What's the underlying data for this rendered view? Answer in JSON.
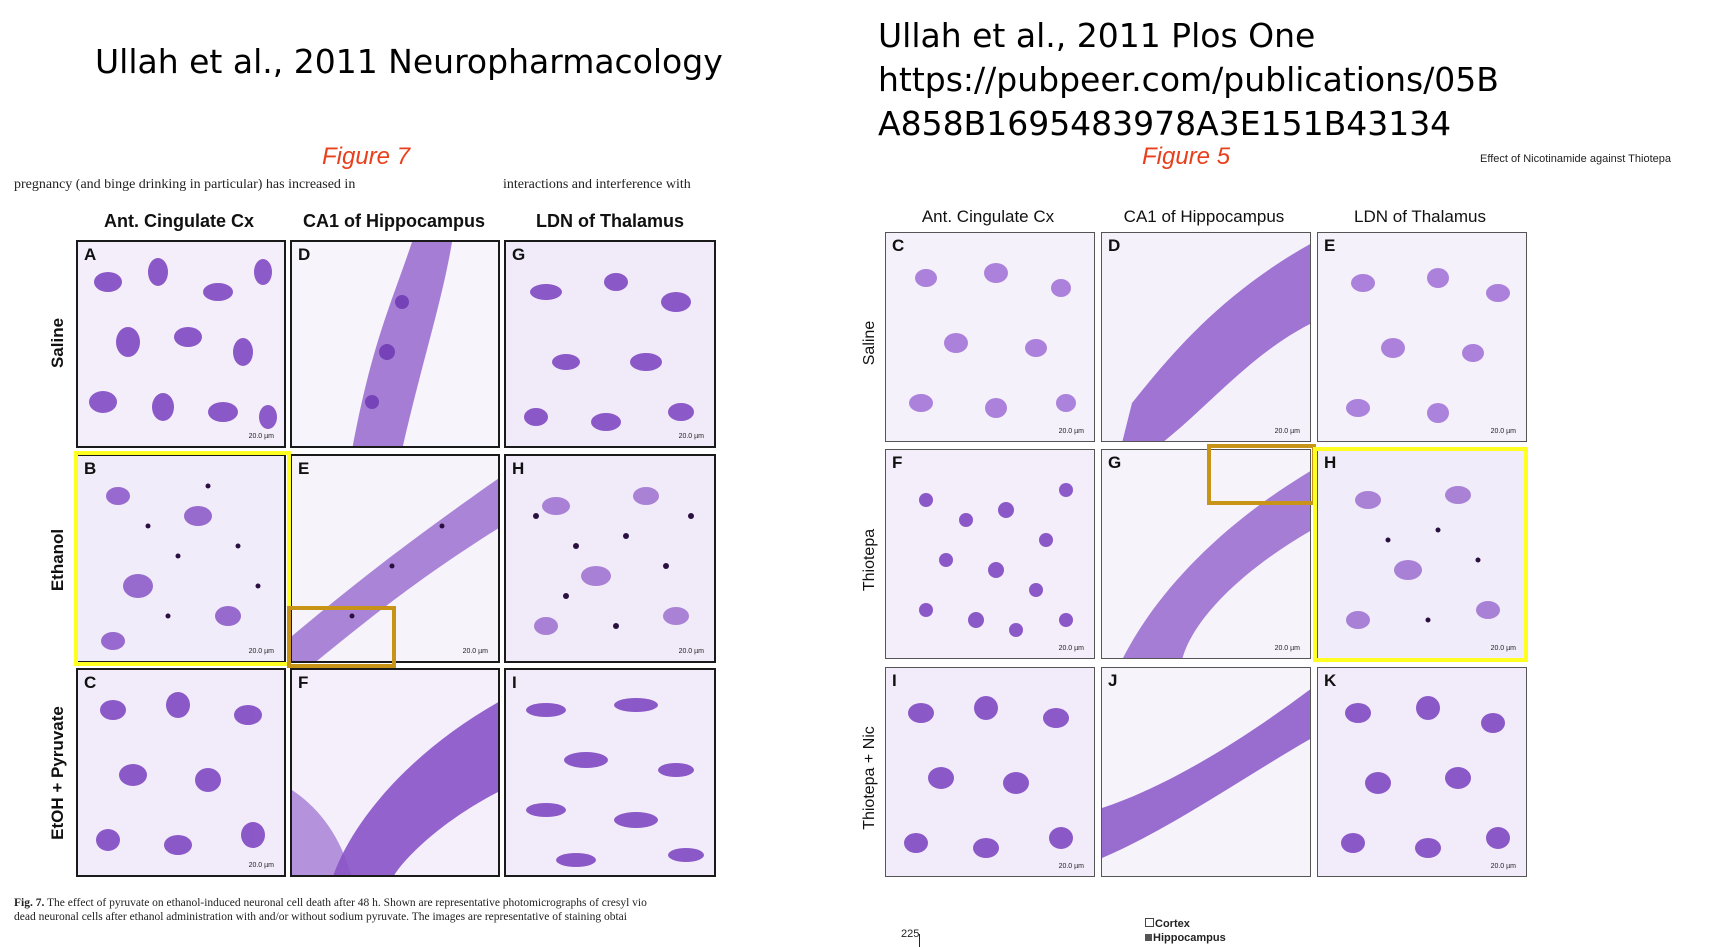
{
  "titles": {
    "left": "Ullah et al., 2011 Neuropharmacology",
    "right_line1": "Ullah et al., 2011 Plos One",
    "right_line2": "https://pubpeer.com/publications/05B",
    "right_line3": "A858B1695483978A3E151B43134"
  },
  "figures": {
    "left_label": "Figure 7",
    "right_label": "Figure 5",
    "right_running_head": "Effect of Nicotinamide against Thiotepa"
  },
  "left_figure": {
    "top_text_a": "pregnancy (and binge drinking in particular) has increased in",
    "top_text_b": "interactions and interference with",
    "columns": [
      "Ant. Cingulate Cx",
      "CA1 of Hippocampus",
      "LDN of Thalamus"
    ],
    "rows": [
      "Saline",
      "Ethanol",
      "EtOH + Pyruvate"
    ],
    "panels": [
      "A",
      "D",
      "G",
      "B",
      "E",
      "H",
      "C",
      "F",
      "I"
    ],
    "scale_bar": "20.0 µm",
    "caption_bold": "Fig. 7.",
    "caption_line1": "The effect of pyruvate on ethanol-induced neuronal cell death after 48 h. Shown are representative photomicrographs of cresyl vio",
    "caption_line2": "dead neuronal cells after ethanol administration with and/or without sodium pyruvate. The images are representative of staining obtai"
  },
  "right_figure": {
    "columns": [
      "Ant. Cingulate Cx",
      "CA1 of Hippocampus",
      "LDN of Thalamus"
    ],
    "rows": [
      "Saline",
      "Thiotepa",
      "Thiotepa + Nic"
    ],
    "panels": [
      "C",
      "D",
      "E",
      "F",
      "G",
      "H",
      "I",
      "J",
      "K"
    ],
    "scale_bar": "20.0 µm",
    "axis_tick": "225",
    "legend": [
      "Cortex",
      "Hippocampus"
    ]
  },
  "colors": {
    "figure_label": "#e8401c",
    "highlight_yellow": "#ffff22",
    "highlight_orange": "#c89418",
    "stain_purple": "#7a3fc0"
  }
}
